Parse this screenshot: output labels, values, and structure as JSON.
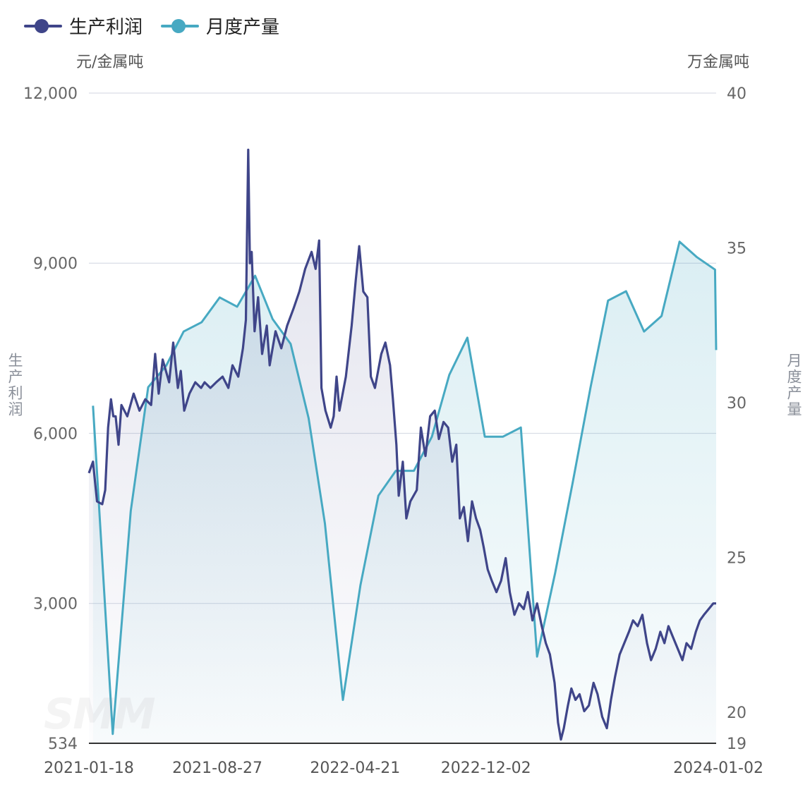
{
  "legend": [
    {
      "name": "生产利润",
      "color": "#3f4589"
    },
    {
      "name": "月度产量",
      "color": "#47a9c2"
    }
  ],
  "units": {
    "left": "元/金属吨",
    "right": "万金属吨"
  },
  "axis_titles": {
    "left": "生产利润",
    "right": "月度产量"
  },
  "watermark": "SMM",
  "chart_data": {
    "type": "line",
    "x_ticks": [
      "2021-01-18",
      "2021-08-27",
      "2022-04-21",
      "2022-12-02",
      "2024-01-02"
    ],
    "y_left": {
      "ticks": [
        "534",
        "3,000",
        "6,000",
        "9,000",
        "12,000"
      ],
      "values": [
        534,
        3000,
        6000,
        9000,
        12000
      ],
      "range": [
        534,
        12000
      ]
    },
    "y_right": {
      "ticks": [
        "19",
        "20",
        "25",
        "30",
        "35",
        "40"
      ],
      "values": [
        19,
        20,
        25,
        30,
        35,
        40
      ],
      "range": [
        19,
        40
      ]
    },
    "grid": true,
    "area_fill": true,
    "series": [
      {
        "name": "生产利润",
        "axis": "left",
        "color": "#3f4589",
        "points": [
          [
            "2021-01-18",
            5300
          ],
          [
            "2021-01-25",
            5500
          ],
          [
            "2021-02-01",
            4800
          ],
          [
            "2021-02-10",
            4750
          ],
          [
            "2021-02-15",
            5000
          ],
          [
            "2021-02-20",
            6100
          ],
          [
            "2021-02-25",
            6600
          ],
          [
            "2021-03-01",
            6300
          ],
          [
            "2021-03-05",
            6300
          ],
          [
            "2021-03-10",
            5800
          ],
          [
            "2021-03-15",
            6500
          ],
          [
            "2021-03-25",
            6300
          ],
          [
            "2021-04-05",
            6700
          ],
          [
            "2021-04-15",
            6400
          ],
          [
            "2021-04-25",
            6600
          ],
          [
            "2021-05-05",
            6500
          ],
          [
            "2021-05-12",
            7400
          ],
          [
            "2021-05-18",
            6700
          ],
          [
            "2021-05-25",
            7300
          ],
          [
            "2021-06-05",
            6900
          ],
          [
            "2021-06-12",
            7600
          ],
          [
            "2021-06-20",
            6800
          ],
          [
            "2021-06-25",
            7100
          ],
          [
            "2021-07-01",
            6400
          ],
          [
            "2021-07-10",
            6700
          ],
          [
            "2021-07-20",
            6900
          ],
          [
            "2021-07-30",
            6800
          ],
          [
            "2021-08-05",
            6900
          ],
          [
            "2021-08-15",
            6800
          ],
          [
            "2021-08-25",
            6900
          ],
          [
            "2021-09-05",
            7000
          ],
          [
            "2021-09-15",
            6800
          ],
          [
            "2021-09-22",
            7200
          ],
          [
            "2021-10-02",
            7000
          ],
          [
            "2021-10-10",
            7500
          ],
          [
            "2021-10-15",
            8000
          ],
          [
            "2021-10-17",
            9500
          ],
          [
            "2021-10-19",
            11000
          ],
          [
            "2021-10-22",
            9000
          ],
          [
            "2021-10-25",
            9200
          ],
          [
            "2021-10-30",
            7800
          ],
          [
            "2021-11-05",
            8400
          ],
          [
            "2021-11-12",
            7400
          ],
          [
            "2021-11-20",
            7900
          ],
          [
            "2021-11-25",
            7200
          ],
          [
            "2021-12-05",
            7800
          ],
          [
            "2021-12-15",
            7500
          ],
          [
            "2021-12-25",
            7900
          ],
          [
            "2022-01-05",
            8200
          ],
          [
            "2022-01-15",
            8500
          ],
          [
            "2022-01-25",
            8900
          ],
          [
            "2022-02-05",
            9200
          ],
          [
            "2022-02-12",
            8900
          ],
          [
            "2022-02-18",
            9400
          ],
          [
            "2022-02-22",
            6800
          ],
          [
            "2022-03-01",
            6400
          ],
          [
            "2022-03-10",
            6100
          ],
          [
            "2022-03-15",
            6300
          ],
          [
            "2022-03-20",
            7000
          ],
          [
            "2022-03-25",
            6400
          ],
          [
            "2022-04-05",
            7000
          ],
          [
            "2022-04-15",
            7900
          ],
          [
            "2022-04-22",
            8700
          ],
          [
            "2022-04-28",
            9300
          ],
          [
            "2022-05-05",
            8500
          ],
          [
            "2022-05-12",
            8400
          ],
          [
            "2022-05-18",
            7000
          ],
          [
            "2022-05-25",
            6800
          ],
          [
            "2022-06-05",
            7400
          ],
          [
            "2022-06-12",
            7600
          ],
          [
            "2022-06-20",
            7200
          ],
          [
            "2022-06-25",
            6600
          ],
          [
            "2022-07-01",
            5800
          ],
          [
            "2022-07-05",
            4900
          ],
          [
            "2022-07-12",
            5500
          ],
          [
            "2022-07-18",
            4500
          ],
          [
            "2022-07-25",
            4800
          ],
          [
            "2022-08-05",
            5000
          ],
          [
            "2022-08-12",
            6100
          ],
          [
            "2022-08-20",
            5600
          ],
          [
            "2022-08-28",
            6300
          ],
          [
            "2022-09-05",
            6400
          ],
          [
            "2022-09-12",
            5900
          ],
          [
            "2022-09-20",
            6200
          ],
          [
            "2022-09-28",
            6100
          ],
          [
            "2022-10-05",
            5500
          ],
          [
            "2022-10-12",
            5800
          ],
          [
            "2022-10-18",
            4500
          ],
          [
            "2022-10-25",
            4700
          ],
          [
            "2022-11-01",
            4100
          ],
          [
            "2022-11-08",
            4800
          ],
          [
            "2022-11-15",
            4500
          ],
          [
            "2022-11-22",
            4300
          ],
          [
            "2022-11-28",
            4000
          ],
          [
            "2022-12-05",
            3600
          ],
          [
            "2022-12-12",
            3400
          ],
          [
            "2022-12-20",
            3200
          ],
          [
            "2022-12-28",
            3400
          ],
          [
            "2023-01-05",
            3800
          ],
          [
            "2023-01-12",
            3200
          ],
          [
            "2023-01-20",
            2800
          ],
          [
            "2023-01-28",
            3000
          ],
          [
            "2023-02-05",
            2900
          ],
          [
            "2023-02-12",
            3200
          ],
          [
            "2023-02-20",
            2700
          ],
          [
            "2023-02-28",
            3000
          ],
          [
            "2023-03-08",
            2600
          ],
          [
            "2023-03-15",
            2300
          ],
          [
            "2023-03-22",
            2100
          ],
          [
            "2023-03-30",
            1600
          ],
          [
            "2023-04-05",
            900
          ],
          [
            "2023-04-10",
            600
          ],
          [
            "2023-04-15",
            800
          ],
          [
            "2023-04-22",
            1200
          ],
          [
            "2023-04-28",
            1500
          ],
          [
            "2023-05-05",
            1300
          ],
          [
            "2023-05-12",
            1400
          ],
          [
            "2023-05-20",
            1100
          ],
          [
            "2023-05-28",
            1200
          ],
          [
            "2023-06-05",
            1600
          ],
          [
            "2023-06-12",
            1400
          ],
          [
            "2023-06-20",
            1000
          ],
          [
            "2023-06-28",
            800
          ],
          [
            "2023-07-05",
            1300
          ],
          [
            "2023-07-12",
            1700
          ],
          [
            "2023-07-20",
            2100
          ],
          [
            "2023-07-28",
            2300
          ],
          [
            "2023-08-05",
            2500
          ],
          [
            "2023-08-12",
            2700
          ],
          [
            "2023-08-20",
            2600
          ],
          [
            "2023-08-28",
            2800
          ],
          [
            "2023-09-05",
            2300
          ],
          [
            "2023-09-12",
            2000
          ],
          [
            "2023-09-20",
            2200
          ],
          [
            "2023-09-28",
            2500
          ],
          [
            "2023-10-05",
            2300
          ],
          [
            "2023-10-12",
            2600
          ],
          [
            "2023-10-20",
            2400
          ],
          [
            "2023-10-28",
            2200
          ],
          [
            "2023-11-05",
            2000
          ],
          [
            "2023-11-12",
            2300
          ],
          [
            "2023-11-20",
            2200
          ],
          [
            "2023-11-28",
            2500
          ],
          [
            "2023-12-05",
            2700
          ],
          [
            "2023-12-12",
            2800
          ],
          [
            "2023-12-20",
            2900
          ],
          [
            "2023-12-28",
            3000
          ],
          [
            "2024-01-02",
            3000
          ]
        ]
      },
      {
        "name": "月度产量",
        "axis": "right",
        "color": "#47a9c2",
        "points": [
          [
            "2021-01-25",
            29.9
          ],
          [
            "2021-02-28",
            19.3
          ],
          [
            "2021-03-31",
            26.5
          ],
          [
            "2021-04-30",
            30.5
          ],
          [
            "2021-05-31",
            31.2
          ],
          [
            "2021-06-30",
            32.3
          ],
          [
            "2021-07-31",
            32.6
          ],
          [
            "2021-08-31",
            33.4
          ],
          [
            "2021-09-30",
            33.1
          ],
          [
            "2021-10-31",
            34.1
          ],
          [
            "2021-11-30",
            32.7
          ],
          [
            "2021-12-31",
            31.9
          ],
          [
            "2022-01-31",
            29.5
          ],
          [
            "2022-02-28",
            26.1
          ],
          [
            "2022-03-31",
            20.4
          ],
          [
            "2022-04-30",
            24.1
          ],
          [
            "2022-05-31",
            27.0
          ],
          [
            "2022-06-30",
            27.8
          ],
          [
            "2022-07-31",
            27.8
          ],
          [
            "2022-08-31",
            28.9
          ],
          [
            "2022-09-30",
            30.9
          ],
          [
            "2022-10-31",
            32.1
          ],
          [
            "2022-11-30",
            28.9
          ],
          [
            "2022-12-31",
            28.9
          ],
          [
            "2023-01-31",
            29.2
          ],
          [
            "2023-02-28",
            21.8
          ],
          [
            "2023-03-31",
            24.5
          ],
          [
            "2023-04-30",
            27.4
          ],
          [
            "2023-05-31",
            30.5
          ],
          [
            "2023-06-30",
            33.3
          ],
          [
            "2023-07-31",
            33.6
          ],
          [
            "2023-08-31",
            32.3
          ],
          [
            "2023-09-30",
            32.8
          ],
          [
            "2023-10-31",
            35.2
          ],
          [
            "2023-11-30",
            34.7
          ],
          [
            "2023-12-31",
            34.3
          ],
          [
            "2024-01-02",
            31.7
          ]
        ]
      }
    ]
  }
}
